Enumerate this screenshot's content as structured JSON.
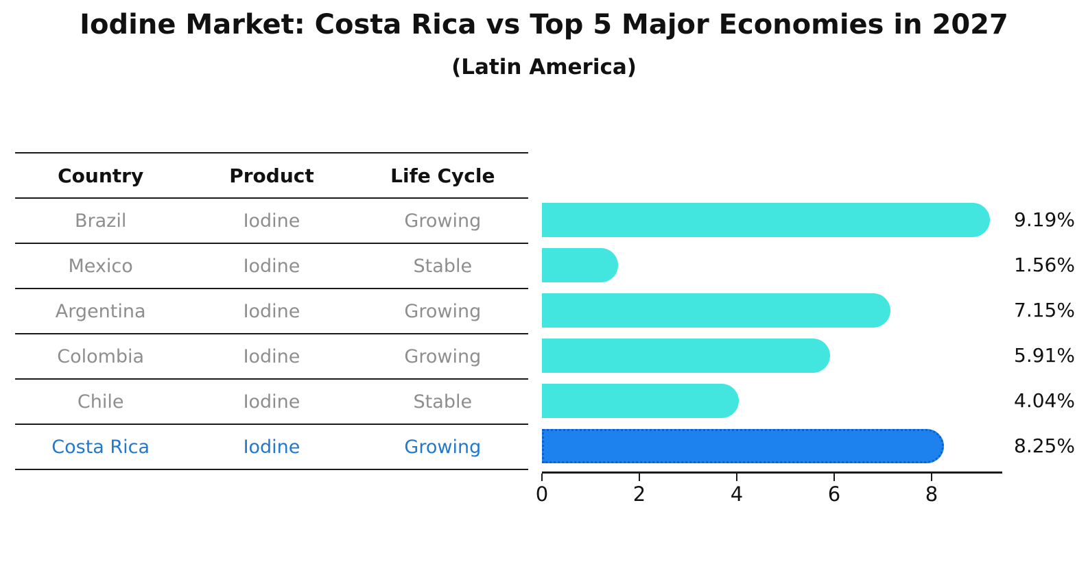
{
  "title": "Iodine Market: Costa Rica vs Top 5 Major Economies in 2027",
  "subtitle": "(Latin America)",
  "table": {
    "headers": [
      "Country",
      "Product",
      "Life Cycle"
    ],
    "rows": [
      {
        "country": "Brazil",
        "product": "Iodine",
        "life_cycle": "Growing",
        "highlighted": false
      },
      {
        "country": "Mexico",
        "product": "Iodine",
        "life_cycle": "Stable",
        "highlighted": false
      },
      {
        "country": "Argentina",
        "product": "Iodine",
        "life_cycle": "Growing",
        "highlighted": false
      },
      {
        "country": "Colombia",
        "product": "Iodine",
        "life_cycle": "Growing",
        "highlighted": false
      },
      {
        "country": "Chile",
        "product": "Iodine",
        "life_cycle": "Stable",
        "highlighted": false
      },
      {
        "country": "Costa Rica",
        "product": "Iodine",
        "life_cycle": "Growing",
        "highlighted": true
      }
    ]
  },
  "chart_data": {
    "type": "bar",
    "orientation": "horizontal",
    "title": "Iodine Market: Costa Rica vs Top 5 Major Economies in 2027",
    "subtitle": "(Latin America)",
    "categories": [
      "Brazil",
      "Mexico",
      "Argentina",
      "Colombia",
      "Chile",
      "Costa Rica"
    ],
    "values": [
      9.19,
      1.56,
      7.15,
      5.91,
      4.04,
      8.25
    ],
    "value_labels": [
      "9.19%",
      "1.56%",
      "7.15%",
      "5.91%",
      "4.04%",
      "8.25%"
    ],
    "unit": "%",
    "xticks": [
      0,
      2,
      4,
      6,
      8
    ],
    "xlim": [
      0,
      9.45
    ],
    "grid": false,
    "legend": false,
    "bar_color": "#43E6DF",
    "highlight_index": 5,
    "highlight_color": "#1E82EE",
    "highlight_border_color": "#0D5FD0"
  },
  "colors": {
    "text": "#111111",
    "muted_text": "#8E8E8E",
    "highlight_text": "#2278CD",
    "line": "#1A1A1A",
    "background": "#FFFFFF"
  }
}
